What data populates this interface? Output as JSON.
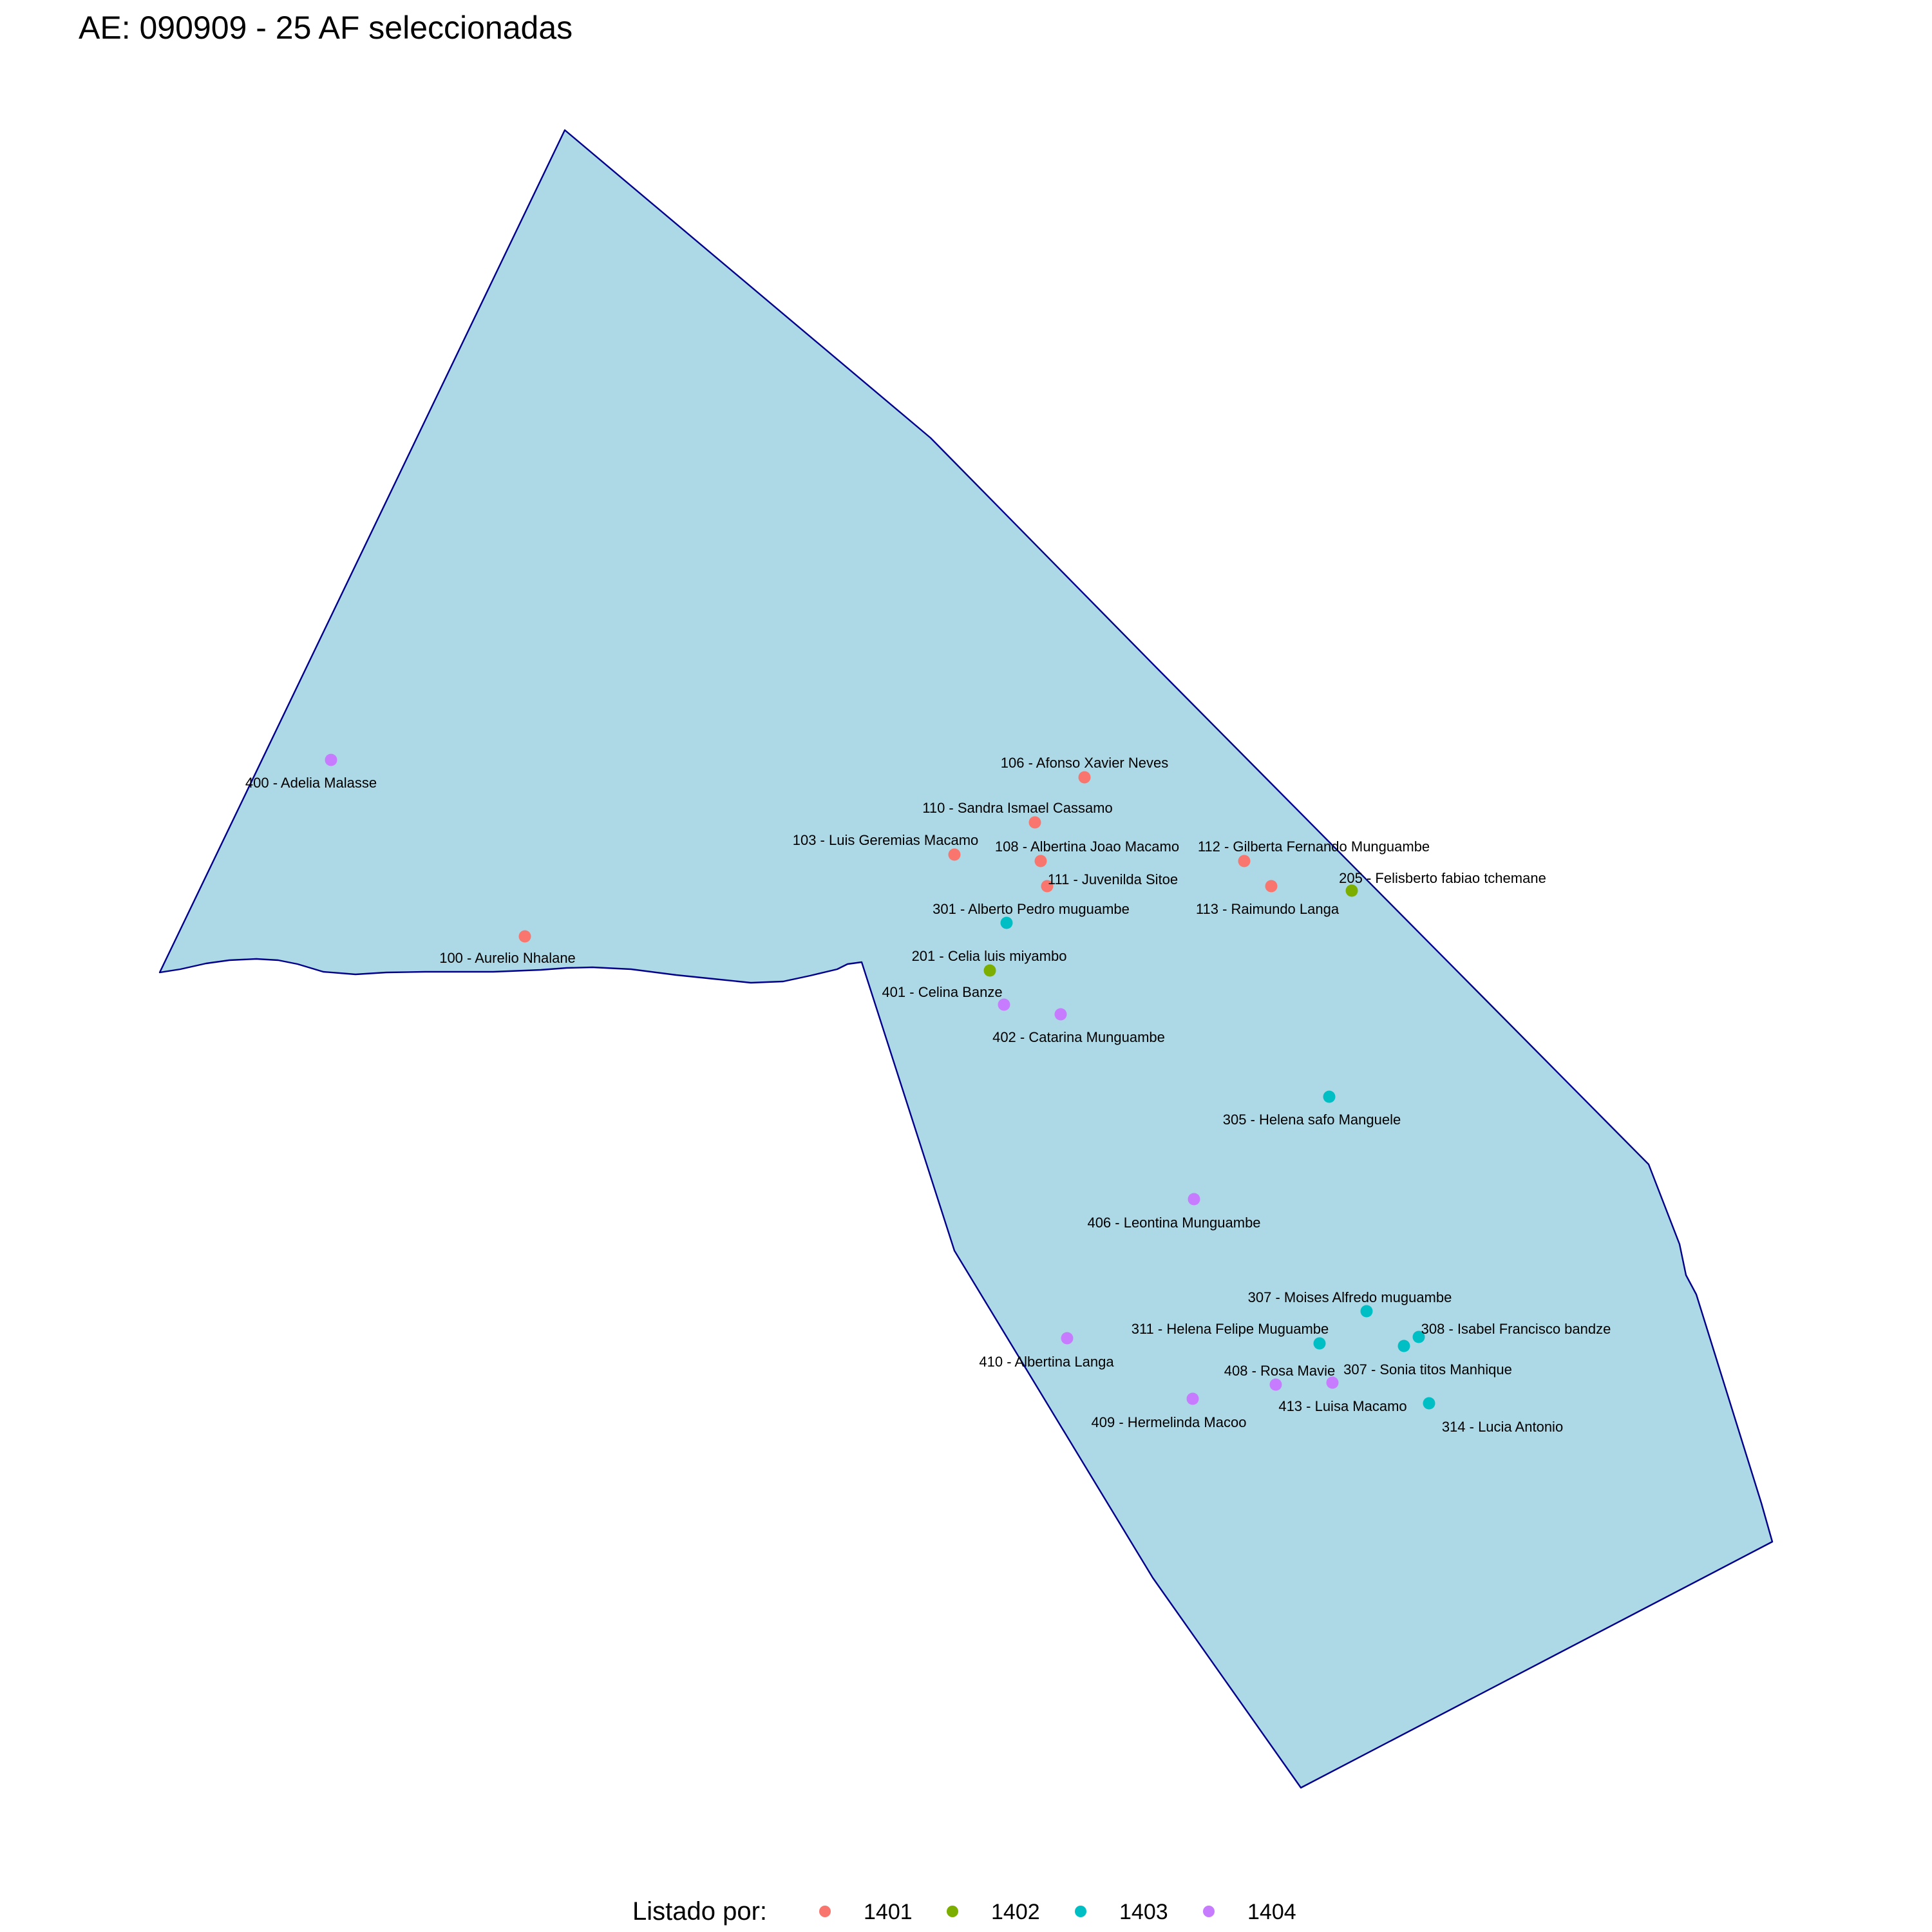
{
  "title": "AE: 090909 - 25  AF seleccionadas",
  "colors": {
    "polygon_fill": "#add8e6",
    "polygon_stroke": "#00008b",
    "background": "#ffffff"
  },
  "legend": {
    "title": "Listado por:",
    "placement": "bottom",
    "items": [
      {
        "key": "1401",
        "label": "1401",
        "color": "#f8766d"
      },
      {
        "key": "1402",
        "label": "1402",
        "color": "#7cae00"
      },
      {
        "key": "1403",
        "label": "1403",
        "color": "#00bfc4"
      },
      {
        "key": "1404",
        "label": "1404",
        "color": "#c77cff"
      }
    ]
  },
  "households": [
    {
      "label": "106 - Afonso Xavier Neves",
      "group": "1401"
    },
    {
      "label": "110 - Sandra Ismael Cassamo",
      "group": "1401"
    },
    {
      "label": "103 - Luis Geremias Macamo",
      "group": "1401"
    },
    {
      "label": "108 - Albertina Joao Macamo",
      "group": "1401"
    },
    {
      "label": "111 - Juvenilda Sitoe",
      "group": "1401"
    },
    {
      "label": "112 - Gilberta Fernando Munguambe",
      "group": "1401"
    },
    {
      "label": "113 - Raimundo Langa",
      "group": "1401"
    },
    {
      "label": "100 - Aurelio Nhalane",
      "group": "1401"
    },
    {
      "label": "205 - Felisberto fabiao tchemane",
      "group": "1402"
    },
    {
      "label": "201 - Celia luis miyambo",
      "group": "1402"
    },
    {
      "label": "301 - Alberto Pedro muguambe",
      "group": "1403"
    },
    {
      "label": "305 - Helena safo Manguele",
      "group": "1403"
    },
    {
      "label": "307 - Moises Alfredo muguambe",
      "group": "1403"
    },
    {
      "label": "311 - Helena Felipe Muguambe",
      "group": "1403"
    },
    {
      "label": "308 - Isabel Francisco bandze",
      "group": "1403"
    },
    {
      "label": "307 - Sonia titos Manhique",
      "group": "1403"
    },
    {
      "label": "314 - Lucia Antonio",
      "group": "1403"
    },
    {
      "label": "400 - Adelia Malasse",
      "group": "1404"
    },
    {
      "label": "401 - Celina Banze",
      "group": "1404"
    },
    {
      "label": "402 - Catarina Munguambe",
      "group": "1404"
    },
    {
      "label": "406 - Leontina Munguambe",
      "group": "1404"
    },
    {
      "label": "410 - Albertina Langa",
      "group": "1404"
    },
    {
      "label": "408 - Rosa Mavie",
      "group": "1404"
    },
    {
      "label": "413 - Luisa Macamo",
      "group": "1404"
    },
    {
      "label": "409 - Hermelinda Macoo",
      "group": "1404"
    }
  ]
}
